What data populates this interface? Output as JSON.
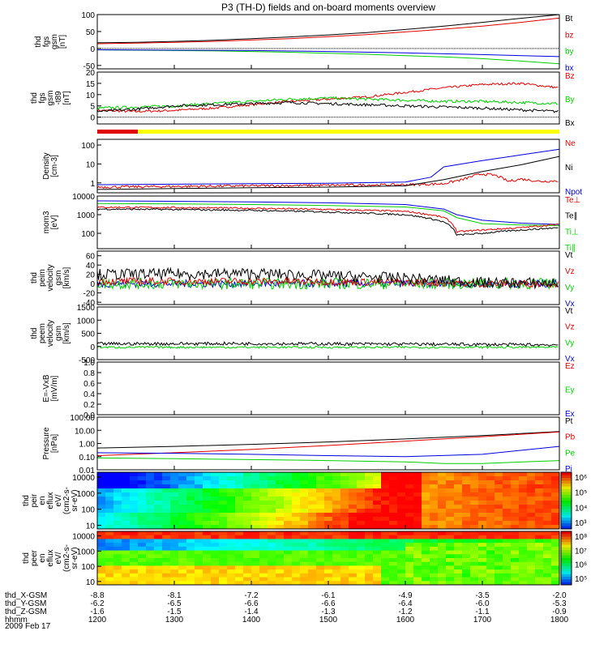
{
  "title": "P3 (TH-D) fields and on-board moments overview",
  "date_label": "2009 Feb 17",
  "ephemeris": {
    "labels": [
      "thd_X-GSM",
      "thd_Y-GSM",
      "thd_Z-GSM",
      "hhmm"
    ],
    "rows": [
      [
        "-8.8",
        "-8.1",
        "-7.2",
        "-6.1",
        "-4.9",
        "-3.5",
        "-2.0"
      ],
      [
        "-6.2",
        "-6.5",
        "-6.6",
        "-6.6",
        "-6.4",
        "-6.0",
        "-5.3"
      ],
      [
        "-1.6",
        "-1.5",
        "-1.4",
        "-1.3",
        "-1.2",
        "-1.1",
        "-0.9"
      ],
      [
        "1200",
        "1300",
        "1400",
        "1500",
        "1600",
        "1700",
        "1800"
      ]
    ]
  },
  "colors": {
    "black": "#000000",
    "red": "#e00000",
    "green": "#00d000",
    "blue": "#0000dd",
    "yellow": "#ffff00"
  },
  "chart_data": [
    {
      "type": "line",
      "ylabel": [
        "thd",
        "fgs",
        "gsm",
        "[nT]"
      ],
      "ylim": [
        -60,
        100
      ],
      "ticks": [
        {
          "v": 100,
          "t": "100"
        },
        {
          "v": 50,
          "t": "50"
        },
        {
          "v": 0,
          "t": "0"
        },
        {
          "v": -50,
          "t": "-50"
        }
      ],
      "zero_line": true,
      "legend": [
        {
          "t": "Bt",
          "c": "black"
        },
        {
          "t": "bz",
          "c": "red"
        },
        {
          "t": "by",
          "c": "green"
        },
        {
          "t": "bx",
          "c": "blue"
        }
      ],
      "series": [
        {
          "c": "black",
          "x": [
            0,
            30,
            60,
            90,
            120,
            150,
            180,
            210,
            240,
            270,
            300,
            330,
            360
          ],
          "y": [
            17,
            18,
            21,
            24,
            29,
            34,
            40,
            47,
            56,
            66,
            77,
            89,
            103
          ]
        },
        {
          "c": "red",
          "x": [
            0,
            30,
            60,
            90,
            120,
            150,
            180,
            210,
            240,
            270,
            300,
            330,
            360
          ],
          "y": [
            14,
            16,
            18,
            21,
            25,
            29,
            35,
            41,
            49,
            57,
            66,
            77,
            90
          ]
        },
        {
          "c": "green",
          "x": [
            0,
            30,
            60,
            90,
            120,
            150,
            180,
            210,
            240,
            270,
            300,
            330,
            360
          ],
          "y": [
            -4,
            -5,
            -6,
            -7,
            -9,
            -11,
            -14,
            -17,
            -21,
            -25,
            -30,
            -37,
            -45
          ]
        },
        {
          "c": "blue",
          "x": [
            0,
            60,
            120,
            180,
            240,
            300,
            360
          ],
          "y": [
            -4,
            -5,
            -6,
            -9,
            -13,
            -18,
            -24
          ]
        }
      ]
    },
    {
      "type": "line",
      "ylabel": [
        "thd",
        "fgs",
        "gsm",
        "-t89",
        "[nT]"
      ],
      "ylim": [
        -3,
        20
      ],
      "ticks": [
        {
          "v": 20,
          "t": "20"
        },
        {
          "v": 15,
          "t": "15"
        },
        {
          "v": 10,
          "t": "10"
        },
        {
          "v": 5,
          "t": "5"
        },
        {
          "v": 0,
          "t": "0"
        }
      ],
      "zero_line": true,
      "legend": [
        {
          "t": "Bz",
          "c": "red"
        },
        {
          "t": "By",
          "c": "green"
        },
        {
          "t": "Bx",
          "c": "black"
        }
      ],
      "series": [
        {
          "c": "red",
          "noisy": 0.5,
          "x": [
            0,
            30,
            60,
            90,
            120,
            150,
            180,
            210,
            240,
            270,
            300,
            330,
            360
          ],
          "y": [
            3,
            2.5,
            3,
            4,
            5.5,
            7,
            8,
            9,
            11,
            13,
            14.5,
            15,
            13
          ]
        },
        {
          "c": "green",
          "noisy": 0.6,
          "x": [
            0,
            30,
            60,
            90,
            120,
            150,
            180,
            210,
            240,
            270,
            300,
            330,
            360
          ],
          "y": [
            4,
            4.5,
            5,
            6,
            7,
            8,
            8.5,
            8,
            7.5,
            7,
            7,
            6.5,
            6
          ]
        },
        {
          "c": "black",
          "noisy": 0.6,
          "x": [
            0,
            30,
            60,
            90,
            120,
            150,
            180,
            210,
            240,
            270,
            300,
            330,
            360
          ],
          "y": [
            2.5,
            3.5,
            5,
            5.5,
            6,
            6.5,
            6,
            5.5,
            5,
            4.5,
            4,
            3.2,
            2.5
          ]
        }
      ]
    },
    {
      "type": "line",
      "scale": "log",
      "ylabel": [
        "Density",
        "[cm-3]"
      ],
      "ylim": [
        0.3,
        200
      ],
      "ticks": [
        {
          "v": 100,
          "t": "100"
        },
        {
          "v": 10,
          "t": "10"
        },
        {
          "v": 1,
          "t": "1"
        }
      ],
      "legend": [
        {
          "t": "Ne",
          "c": "red"
        },
        {
          "t": "Ni",
          "c": "black"
        },
        {
          "t": "Npot",
          "c": "blue"
        }
      ],
      "series": [
        {
          "c": "red",
          "noisy": 0.15,
          "x": [
            0,
            60,
            120,
            180,
            240,
            270,
            285,
            300,
            310,
            320,
            330,
            345,
            360
          ],
          "y": [
            0.6,
            0.65,
            0.7,
            0.75,
            0.8,
            0.9,
            1.5,
            3,
            2.5,
            1.2,
            1.6,
            1.2,
            1.3
          ]
        },
        {
          "c": "black",
          "x": [
            0,
            60,
            120,
            180,
            240,
            270,
            300,
            330,
            360
          ],
          "y": [
            0.45,
            0.5,
            0.55,
            0.6,
            0.7,
            1.5,
            4,
            9,
            25
          ]
        },
        {
          "c": "blue",
          "x": [
            0,
            60,
            120,
            180,
            240,
            260,
            270,
            300,
            330,
            360
          ],
          "y": [
            0.8,
            0.85,
            0.9,
            0.95,
            1.1,
            2,
            7,
            15,
            30,
            60
          ]
        }
      ]
    },
    {
      "type": "line",
      "scale": "log",
      "ylabel": [
        "mom3",
        "[eV]"
      ],
      "ylim": [
        15,
        10000
      ],
      "ticks": [
        {
          "v": 10000,
          "t": "10000"
        },
        {
          "v": 1000,
          "t": "1000"
        },
        {
          "v": 100,
          "t": "100"
        }
      ],
      "legend": [
        {
          "t": "Te⊥",
          "c": "red"
        },
        {
          "t": "Te∥",
          "c": "black"
        },
        {
          "t": "Ti⊥",
          "c": "green"
        },
        {
          "t": "Ti∥",
          "c": "green"
        }
      ],
      "series": [
        {
          "c": "blue",
          "x": [
            0,
            60,
            120,
            180,
            240,
            270,
            280,
            300,
            330,
            360
          ],
          "y": [
            5500,
            5200,
            4800,
            4300,
            3500,
            2000,
            1000,
            500,
            350,
            300
          ]
        },
        {
          "c": "green",
          "x": [
            0,
            60,
            120,
            180,
            240,
            270,
            280,
            300,
            330,
            360
          ],
          "y": [
            4000,
            3800,
            3500,
            3100,
            2600,
            1600,
            700,
            330,
            280,
            260
          ]
        },
        {
          "c": "red",
          "noisy": 0.1,
          "x": [
            0,
            60,
            120,
            180,
            240,
            270,
            280,
            300,
            330,
            360
          ],
          "y": [
            2500,
            2400,
            2200,
            1900,
            1500,
            700,
            120,
            150,
            200,
            300
          ]
        },
        {
          "c": "black",
          "noisy": 0.1,
          "x": [
            0,
            60,
            120,
            180,
            240,
            270,
            280,
            300,
            330,
            360
          ],
          "y": [
            2000,
            1900,
            1700,
            1400,
            1000,
            400,
            80,
            100,
            150,
            200
          ]
        }
      ]
    },
    {
      "type": "line",
      "ylabel": [
        "thd",
        "peim",
        "velocity",
        "gsm",
        "[km/s]"
      ],
      "ylim": [
        -45,
        70
      ],
      "ticks": [
        {
          "v": 60,
          "t": "60"
        },
        {
          "v": 40,
          "t": "40"
        },
        {
          "v": 20,
          "t": "20"
        },
        {
          "v": 0,
          "t": "0"
        },
        {
          "v": -20,
          "t": "-20"
        },
        {
          "v": -40,
          "t": "-40"
        }
      ],
      "legend": [
        {
          "t": "Vt",
          "c": "black"
        },
        {
          "t": "Vz",
          "c": "red"
        },
        {
          "t": "Vy",
          "c": "green"
        },
        {
          "t": "Vx",
          "c": "blue"
        }
      ],
      "series": [
        {
          "c": "blue",
          "noisy": 8,
          "x": [
            0,
            120,
            240,
            300,
            360
          ],
          "y": [
            0,
            0,
            0,
            0,
            0
          ]
        },
        {
          "c": "green",
          "noisy": 12,
          "x": [
            0,
            120,
            240,
            300,
            360
          ],
          "y": [
            0,
            0,
            0,
            0,
            0
          ]
        },
        {
          "c": "red",
          "noisy": 8,
          "x": [
            0,
            120,
            240,
            300,
            360
          ],
          "y": [
            5,
            5,
            3,
            0,
            0
          ]
        },
        {
          "c": "black",
          "noisy": 12,
          "x": [
            0,
            120,
            240,
            300,
            360
          ],
          "y": [
            20,
            22,
            12,
            2,
            1
          ]
        }
      ]
    },
    {
      "type": "line",
      "ylabel": [
        "thd",
        "peem",
        "velocity",
        "gsm",
        "[km/s]"
      ],
      "ylim": [
        -500,
        1500
      ],
      "ticks": [
        {
          "v": 1500,
          "t": "1500"
        },
        {
          "v": 1000,
          "t": "1000"
        },
        {
          "v": 500,
          "t": "500"
        },
        {
          "v": 0,
          "t": "0"
        },
        {
          "v": -500,
          "t": "-500"
        }
      ],
      "legend": [
        {
          "t": "Vt",
          "c": "black"
        },
        {
          "t": "Vz",
          "c": "red"
        },
        {
          "t": "Vy",
          "c": "green"
        },
        {
          "t": "Vx",
          "c": "blue"
        }
      ],
      "series": [
        {
          "c": "green",
          "noisy": 40,
          "x": [
            0,
            360
          ],
          "y": [
            -30,
            -30
          ]
        },
        {
          "c": "black",
          "noisy": 60,
          "x": [
            0,
            120,
            240,
            360
          ],
          "y": [
            100,
            110,
            90,
            60
          ]
        }
      ]
    },
    {
      "type": "line",
      "ylabel": [
        "E=-VxB",
        "[mV/m]"
      ],
      "ylim": [
        0,
        1
      ],
      "ticks": [
        {
          "v": 1.0,
          "t": "1.0"
        },
        {
          "v": 0.8,
          "t": "0.8"
        },
        {
          "v": 0.6,
          "t": "0.6"
        },
        {
          "v": 0.4,
          "t": "0.4"
        },
        {
          "v": 0.2,
          "t": "0.2"
        },
        {
          "v": 0.0,
          "t": "0.0"
        }
      ],
      "legend": [
        {
          "t": "Ez",
          "c": "red"
        },
        {
          "t": "Ey",
          "c": "green"
        },
        {
          "t": "Ex",
          "c": "blue"
        }
      ],
      "series": []
    },
    {
      "type": "line",
      "scale": "log",
      "ylabel": [
        "Pressure",
        "[nPa]"
      ],
      "ylim": [
        0.01,
        100
      ],
      "ticks": [
        {
          "v": 100,
          "t": "100.00"
        },
        {
          "v": 10,
          "t": "10.00"
        },
        {
          "v": 1,
          "t": "1.00"
        },
        {
          "v": 0.1,
          "t": "0.10"
        },
        {
          "v": 0.01,
          "t": "0.01"
        }
      ],
      "legend": [
        {
          "t": "Pt",
          "c": "black"
        },
        {
          "t": "Pb",
          "c": "red"
        },
        {
          "t": "Pe",
          "c": "green"
        },
        {
          "t": "Pi",
          "c": "blue"
        }
      ],
      "series": [
        {
          "c": "black",
          "x": [
            0,
            60,
            120,
            180,
            240,
            300,
            360
          ],
          "y": [
            0.45,
            0.6,
            0.85,
            1.3,
            2.2,
            4,
            8
          ]
        },
        {
          "c": "red",
          "x": [
            0,
            60,
            120,
            180,
            240,
            300,
            360
          ],
          "y": [
            0.12,
            0.2,
            0.35,
            0.7,
            1.5,
            3.3,
            7.5
          ]
        },
        {
          "c": "blue",
          "x": [
            0,
            60,
            120,
            180,
            240,
            300,
            360
          ],
          "y": [
            0.2,
            0.18,
            0.15,
            0.12,
            0.1,
            0.15,
            0.6
          ]
        },
        {
          "c": "green",
          "x": [
            0,
            60,
            120,
            180,
            240,
            270,
            300,
            360
          ],
          "y": [
            0.08,
            0.07,
            0.06,
            0.05,
            0.04,
            0.03,
            0.03,
            0.05
          ]
        }
      ]
    },
    {
      "type": "heatmap",
      "ylabel": [
        "thd",
        "peir",
        "en",
        "eflux",
        "eV/",
        "(cm2-s-",
        "sr-eV)"
      ],
      "ticks": [
        {
          "v": 10000,
          "t": "10000"
        },
        {
          "v": 1000,
          "t": "1000"
        },
        {
          "v": 100,
          "t": "100"
        },
        {
          "v": 10,
          "t": "10"
        }
      ],
      "ylim": [
        6,
        20000
      ],
      "colorbar": [
        "10⁶",
        "10⁵",
        "10⁴",
        "10³"
      ]
    },
    {
      "type": "heatmap",
      "ylabel": [
        "thd",
        "peer",
        "en",
        "eflux",
        "eV/",
        "(cm2-s-",
        "sr-eV)"
      ],
      "ticks": [
        {
          "v": 10000,
          "t": "10000"
        },
        {
          "v": 1000,
          "t": "1000"
        },
        {
          "v": 100,
          "t": "100"
        },
        {
          "v": 10,
          "t": "10"
        }
      ],
      "ylim": [
        6,
        20000
      ],
      "colorbar": [
        "10⁸",
        "10⁷",
        "10⁶",
        "10⁵"
      ]
    }
  ]
}
